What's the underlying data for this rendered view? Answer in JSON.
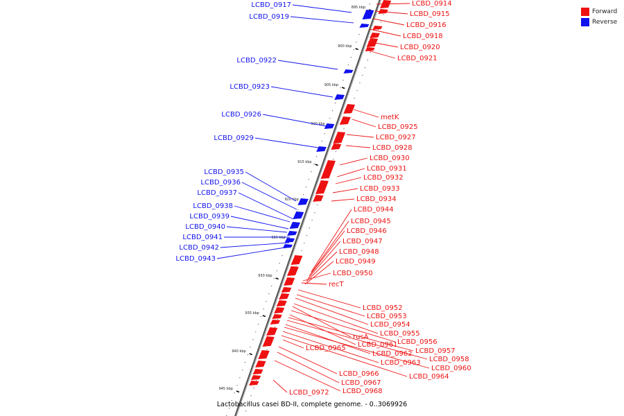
{
  "caption": "Lactobacillus casei BD-II, complete genome. - 0..3069926",
  "legend": [
    {
      "label": "Forward",
      "color": "#ee1111"
    },
    {
      "label": "Reverse",
      "color": "#1111ee"
    }
  ],
  "ticks": [
    "895 kbp",
    "900 kbp",
    "905 kbp",
    "910 kbp",
    "915 kbp",
    "920 kbp",
    "925 kbp",
    "930 kbp",
    "935 kbp",
    "940 kbp",
    "945 kbp"
  ],
  "reverse_labels": [
    "LCBD_0917",
    "LCBD_0919",
    "LCBD_0922",
    "LCBD_0923",
    "LCBD_0926",
    "LCBD_0929",
    "LCBD_0935",
    "LCBD_0936",
    "LCBD_0937",
    "LCBD_0938",
    "LCBD_0939",
    "LCBD_0940",
    "LCBD_0941",
    "LCBD_0942",
    "LCBD_0943"
  ],
  "forward_labels": [
    "LCBD_0914",
    "LCBD_0915",
    "LCBD_0916",
    "LCBD_0918",
    "LCBD_0920",
    "LCBD_0921",
    "metK",
    "LCBD_0925",
    "LCBD_0927",
    "LCBD_0928",
    "LCBD_0930",
    "LCBD_0931",
    "LCBD_0932",
    "LCBD_0933",
    "LCBD_0934",
    "LCBD_0944",
    "LCBD_0945",
    "LCBD_0946",
    "LCBD_0947",
    "LCBD_0948",
    "LCBD_0949",
    "LCBD_0950",
    "recT",
    "LCBD_0952",
    "LCBD_0953",
    "LCBD_0954",
    "LCBD_0955",
    "rusA",
    "LCBD_0956",
    "LCBD_0961",
    "LCBD_0957",
    "LCBD_0958",
    "LCBD_0962",
    "LCBD_0960",
    "LCBD_0963",
    "LCBD_0964",
    "LCBD_0965",
    "LCBD_0966",
    "LCBD_0967",
    "LCBD_0968",
    "LCBD_0972"
  ]
}
